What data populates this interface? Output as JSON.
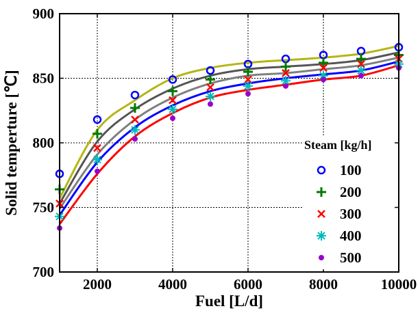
{
  "chart_data": {
    "type": "scatter",
    "xlabel": "Fuel [L/d]",
    "ylabel": "Solid temperture [℃]",
    "xlim": [
      1000,
      10000
    ],
    "ylim": [
      700,
      900
    ],
    "xticks": [
      2000,
      4000,
      6000,
      8000,
      10000
    ],
    "yticks": [
      700,
      750,
      800,
      850,
      900
    ],
    "grid": true,
    "legend_title": "Steam [kg/h]",
    "legend_position": "right",
    "x": [
      1000,
      2000,
      3000,
      4000,
      5000,
      6000,
      7000,
      8000,
      9000,
      10000
    ],
    "series": [
      {
        "name": "100",
        "marker": "circle",
        "color": "#0000ff",
        "values": [
          776,
          818,
          837,
          849,
          856,
          861,
          865,
          868,
          871,
          874
        ],
        "fit": [
          757,
          810,
          833,
          850,
          858,
          862,
          864,
          866,
          869,
          875
        ],
        "fit_color": "#b5b514"
      },
      {
        "name": "200",
        "marker": "plus",
        "color": "#007a00",
        "values": [
          764,
          807,
          827,
          840,
          849,
          855,
          859,
          862,
          865,
          868
        ],
        "fit": [
          753,
          801,
          826,
          842,
          852,
          857,
          859,
          861,
          864,
          870
        ],
        "fit_color": "#555555"
      },
      {
        "name": "300",
        "marker": "x",
        "color": "#ff0000",
        "values": [
          753,
          796,
          818,
          833,
          843,
          849,
          854,
          858,
          861,
          865
        ],
        "fit": [
          749,
          791,
          818,
          835,
          846,
          852,
          854,
          857,
          860,
          866
        ],
        "fit_color": "#7f7f7f"
      },
      {
        "name": "400",
        "marker": "asterisk",
        "color": "#00bbbb",
        "values": [
          743,
          787,
          810,
          826,
          836,
          844,
          848,
          852,
          856,
          861
        ],
        "fit": [
          744,
          785,
          812,
          829,
          840,
          846,
          850,
          853,
          856,
          863
        ],
        "fit_color": "#0000ff"
      },
      {
        "name": "500",
        "marker": "dot",
        "color": "#9900cc",
        "values": [
          734,
          778,
          803,
          819,
          830,
          838,
          844,
          849,
          852,
          858
        ],
        "fit": [
          737,
          776,
          805,
          823,
          835,
          841,
          845,
          849,
          852,
          860
        ],
        "fit_color": "#ff0000"
      }
    ]
  }
}
